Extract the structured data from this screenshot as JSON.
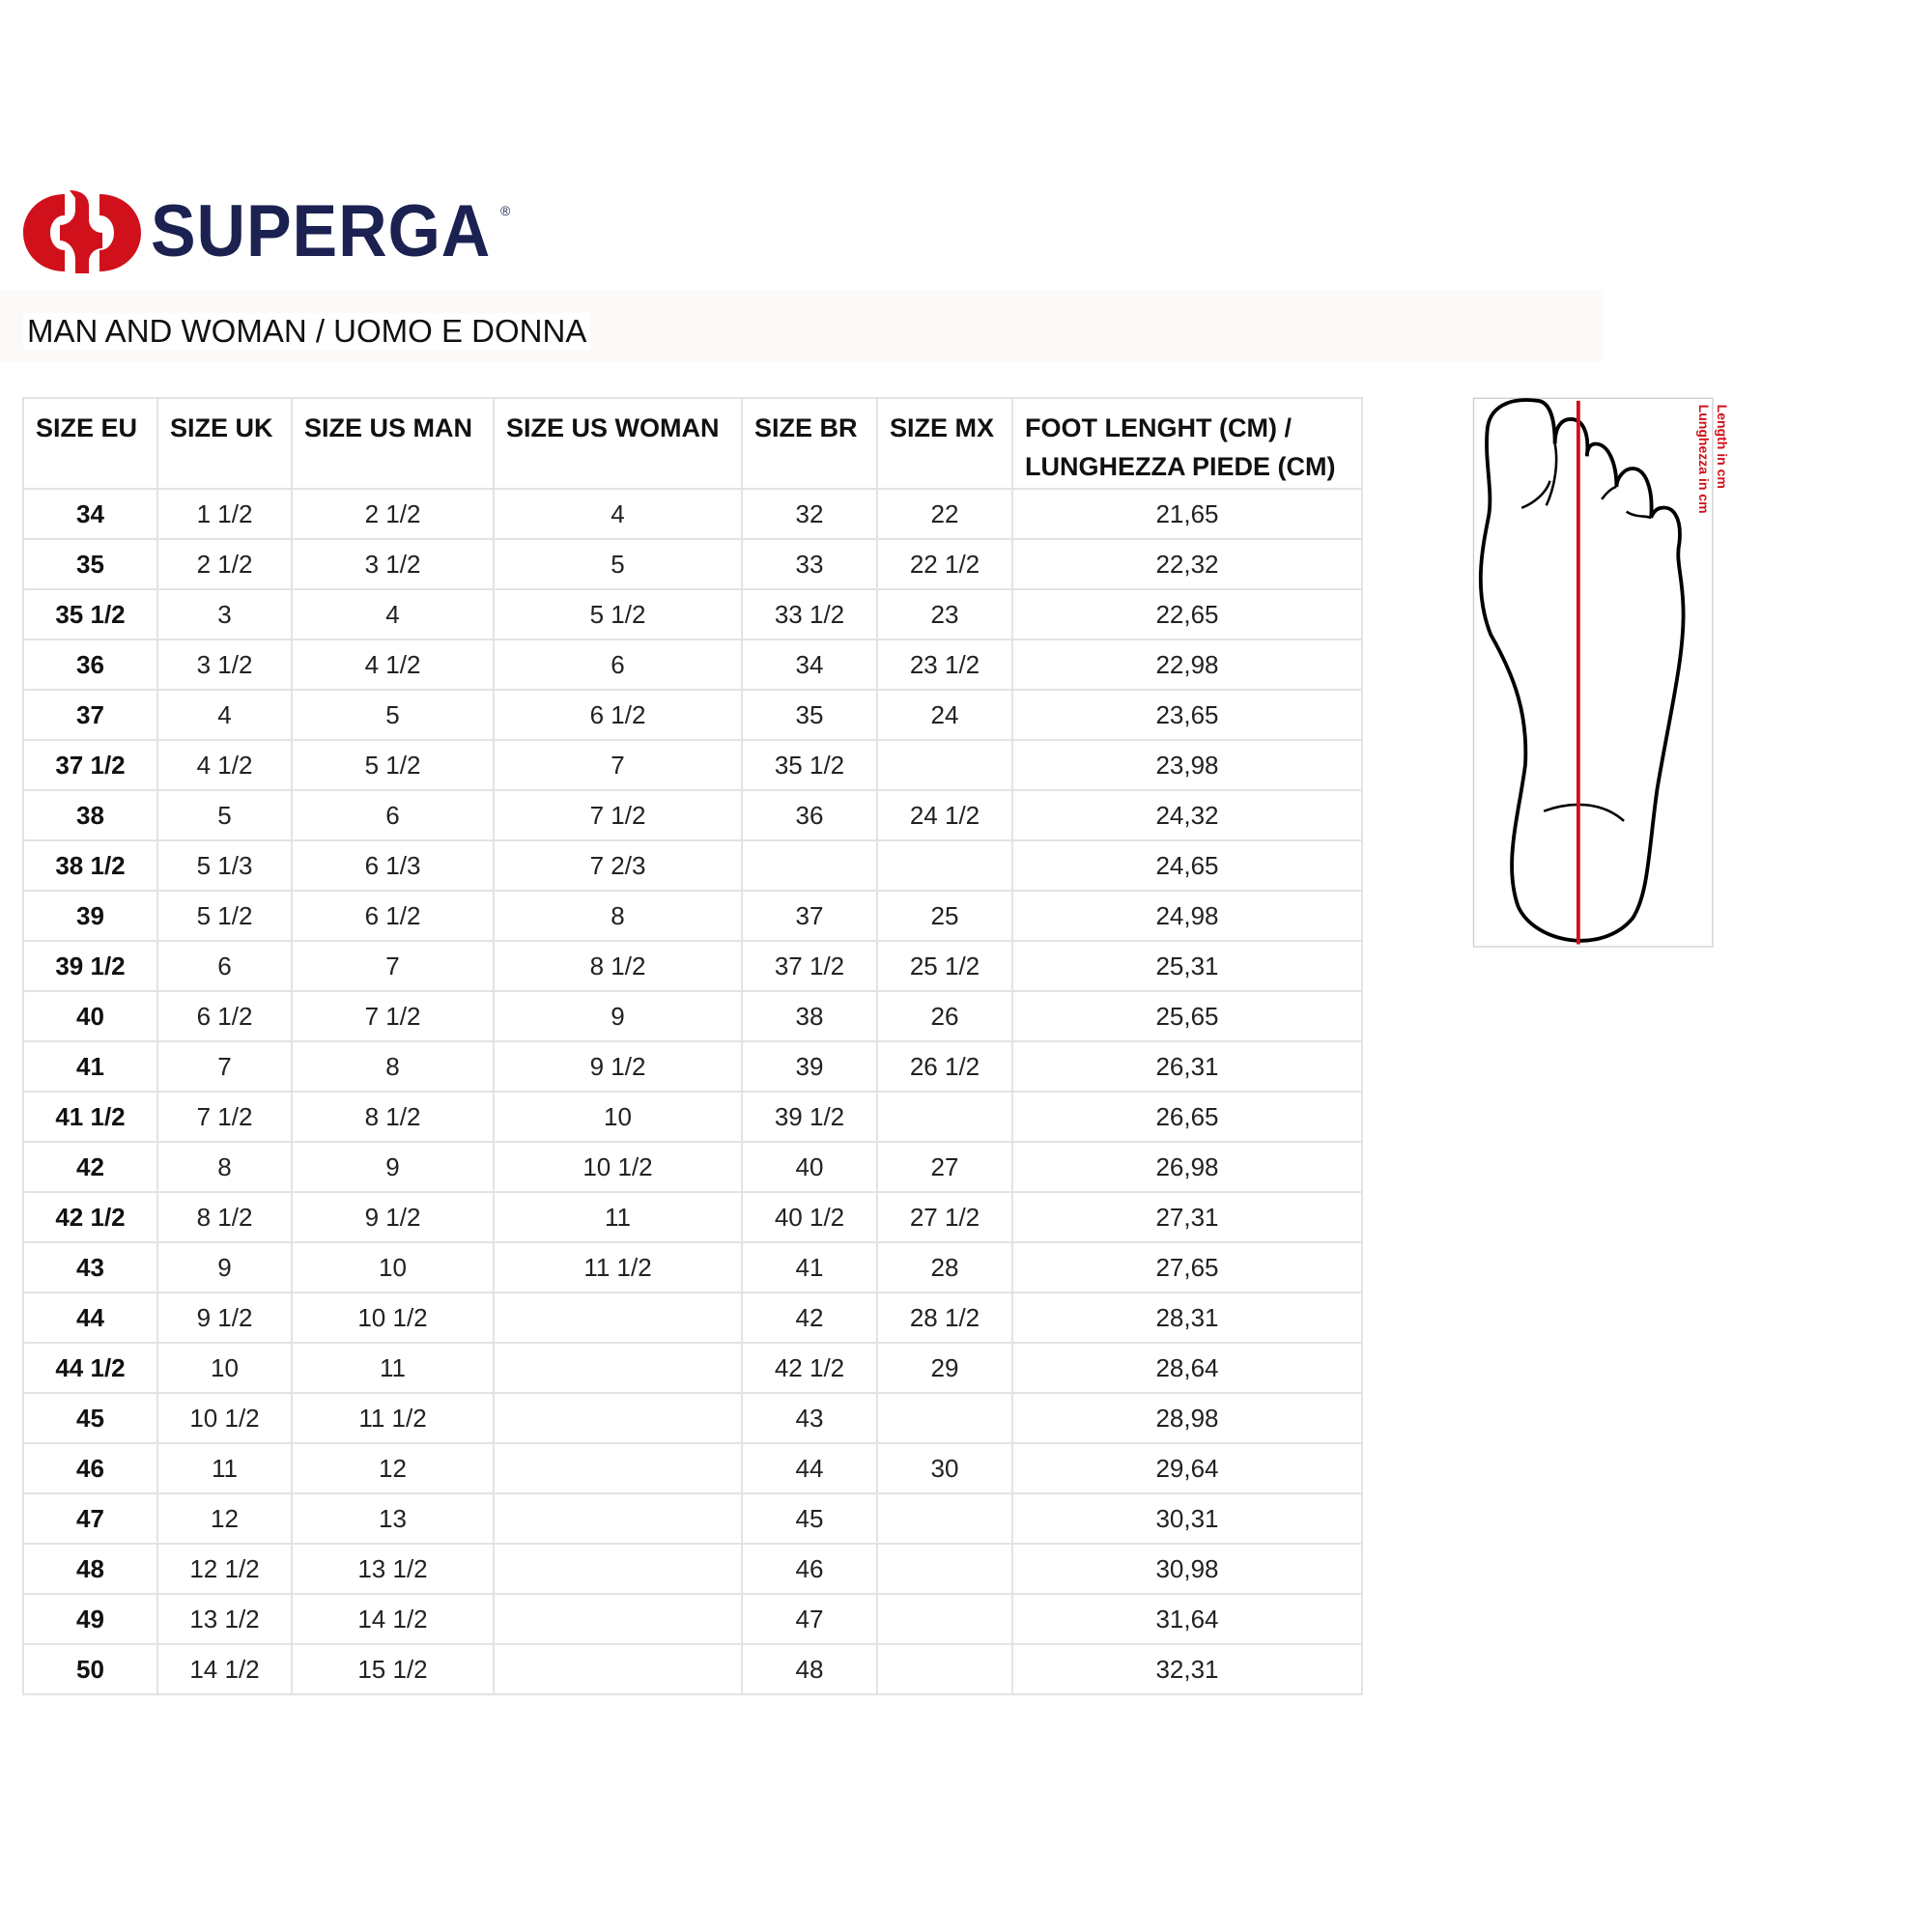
{
  "brand": {
    "name": "SUPERGA",
    "registered": "®",
    "colors": {
      "red": "#d0111b",
      "navy": "#1b2150",
      "length_line": "#d0111b"
    }
  },
  "title": "MAN AND WOMAN / UOMO E DONNA",
  "table": {
    "headers": [
      "SIZE EU",
      "SIZE UK",
      "SIZE US MAN",
      "SIZE US WOMAN",
      "SIZE BR",
      "SIZE MX",
      "FOOT LENGHT (CM) / LUNGHEZZA PIEDE (CM)"
    ],
    "rows": [
      [
        "34",
        "1 1/2",
        "2 1/2",
        "4",
        "32",
        "22",
        "21,65"
      ],
      [
        "35",
        "2 1/2",
        "3 1/2",
        "5",
        "33",
        "22 1/2",
        "22,32"
      ],
      [
        "35 1/2",
        "3",
        "4",
        "5 1/2",
        "33 1/2",
        "23",
        "22,65"
      ],
      [
        "36",
        "3 1/2",
        "4 1/2",
        "6",
        "34",
        "23 1/2",
        "22,98"
      ],
      [
        "37",
        "4",
        "5",
        "6 1/2",
        "35",
        "24",
        "23,65"
      ],
      [
        "37 1/2",
        "4 1/2",
        "5 1/2",
        "7",
        "35 1/2",
        "",
        "23,98"
      ],
      [
        "38",
        "5",
        "6",
        "7 1/2",
        "36",
        "24 1/2",
        "24,32"
      ],
      [
        "38 1/2",
        "5 1/3",
        "6 1/3",
        "7 2/3",
        "",
        "",
        "24,65"
      ],
      [
        "39",
        "5 1/2",
        "6 1/2",
        "8",
        "37",
        "25",
        "24,98"
      ],
      [
        "39 1/2",
        "6",
        "7",
        "8 1/2",
        "37 1/2",
        "25 1/2",
        "25,31"
      ],
      [
        "40",
        "6 1/2",
        "7 1/2",
        "9",
        "38",
        "26",
        "25,65"
      ],
      [
        "41",
        "7",
        "8",
        "9 1/2",
        "39",
        "26 1/2",
        "26,31"
      ],
      [
        "41 1/2",
        "7 1/2",
        "8 1/2",
        "10",
        "39 1/2",
        "",
        "26,65"
      ],
      [
        "42",
        "8",
        "9",
        "10 1/2",
        "40",
        "27",
        "26,98"
      ],
      [
        "42 1/2",
        "8 1/2",
        "9 1/2",
        "11",
        "40 1/2",
        "27 1/2",
        "27,31"
      ],
      [
        "43",
        "9",
        "10",
        "11 1/2",
        "41",
        "28",
        "27,65"
      ],
      [
        "44",
        "9 1/2",
        "10 1/2",
        "",
        "42",
        "28 1/2",
        "28,31"
      ],
      [
        "44 1/2",
        "10",
        "11",
        "",
        "42 1/2",
        "29",
        "28,64"
      ],
      [
        "45",
        "10 1/2",
        "11 1/2",
        "",
        "43",
        "",
        "28,98"
      ],
      [
        "46",
        "11",
        "12",
        "",
        "44",
        "30",
        "29,64"
      ],
      [
        "47",
        "12",
        "13",
        "",
        "45",
        "",
        "30,31"
      ],
      [
        "48",
        "12 1/2",
        "13 1/2",
        "",
        "46",
        "",
        "30,98"
      ],
      [
        "49",
        "13 1/2",
        "14 1/2",
        "",
        "47",
        "",
        "31,64"
      ],
      [
        "50",
        "14 1/2",
        "15 1/2",
        "",
        "48",
        "",
        "32,31"
      ]
    ]
  },
  "diagram": {
    "label_en": "Length in cm",
    "label_it": "Lunghezza in cm"
  }
}
